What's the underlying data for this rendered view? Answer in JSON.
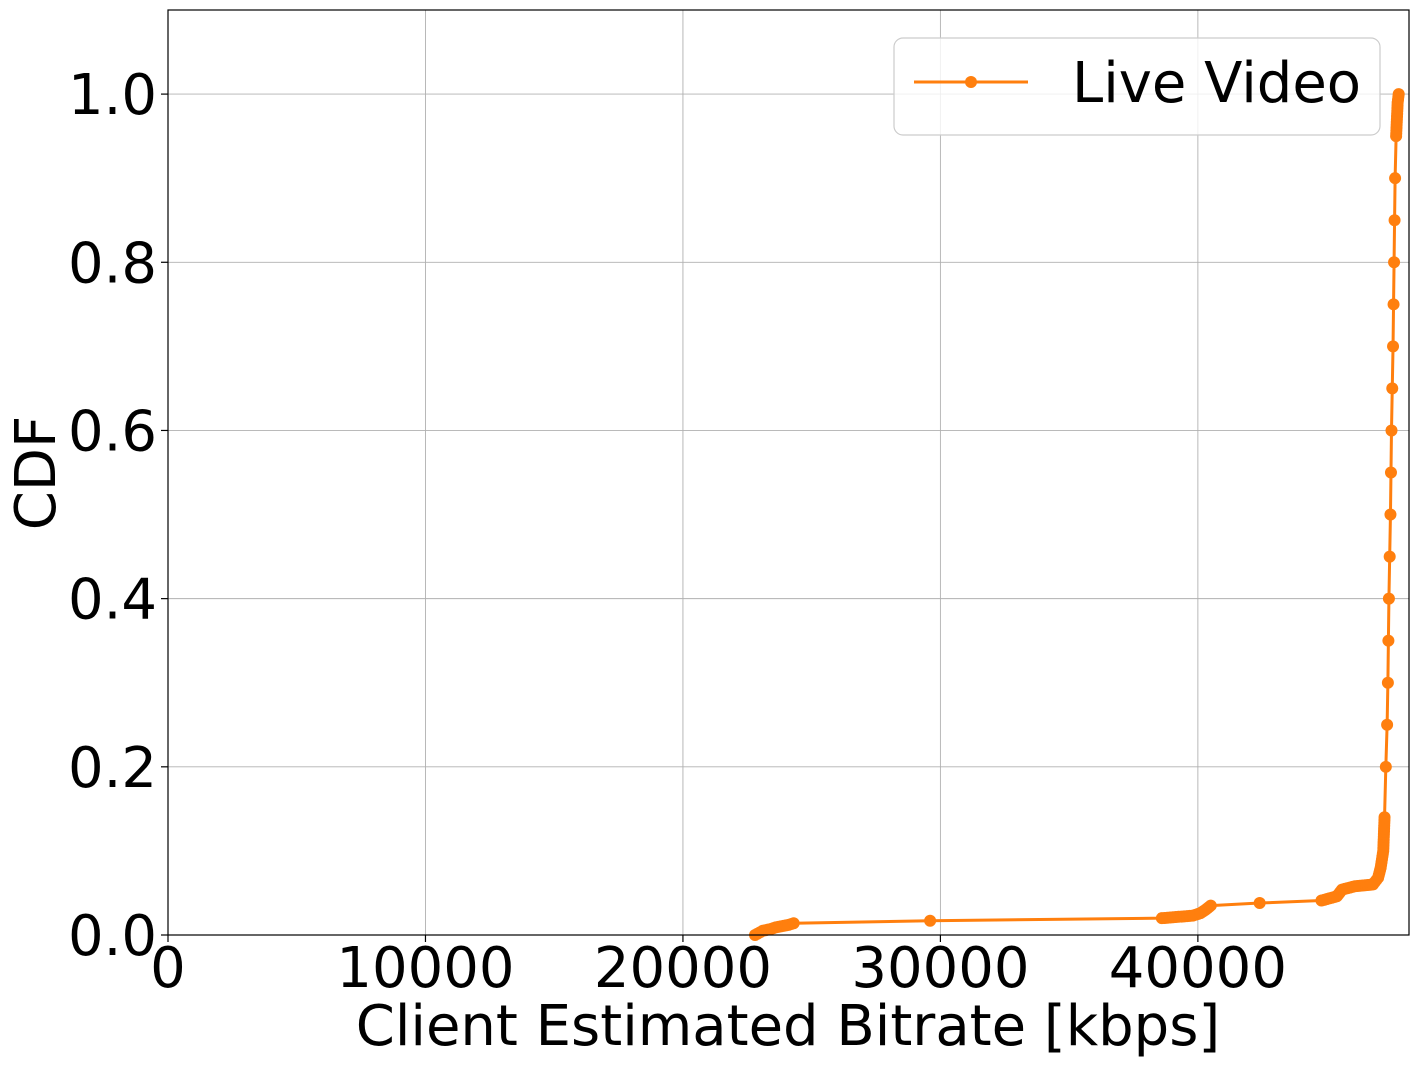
{
  "chart_data": {
    "type": "line",
    "title": "",
    "xlabel": "Client Estimated Bitrate [kbps]",
    "ylabel": "CDF",
    "xlim": [
      0,
      48200
    ],
    "ylim": [
      0,
      1.1
    ],
    "xticks": [
      0,
      10000,
      20000,
      30000,
      40000
    ],
    "xtick_labels": [
      "0",
      "10000",
      "20000",
      "30000",
      "40000"
    ],
    "yticks": [
      0.0,
      0.2,
      0.4,
      0.6,
      0.8,
      1.0
    ],
    "ytick_labels": [
      "0.0",
      "0.2",
      "0.4",
      "0.6",
      "0.8",
      "1.0"
    ],
    "grid": true,
    "legend_position": "top-right",
    "series": [
      {
        "name": "Live Video",
        "color": "#ff7f0e",
        "marker": "circle",
        "x": [
          22800,
          23100,
          23400,
          23600,
          24100,
          24300,
          29600,
          38600,
          39800,
          40100,
          40300,
          40500,
          42400,
          44800,
          45400,
          45500,
          45600,
          46100,
          46800,
          47000,
          47100,
          47200,
          47250,
          47300,
          47350,
          47380,
          47400,
          47420,
          47450,
          47480,
          47500,
          47520,
          47550,
          47580,
          47600,
          47620,
          47640,
          47660,
          47700,
          47760,
          47800
        ],
        "y": [
          0.0,
          0.005,
          0.007,
          0.009,
          0.012,
          0.014,
          0.017,
          0.02,
          0.023,
          0.026,
          0.03,
          0.035,
          0.038,
          0.041,
          0.046,
          0.05,
          0.054,
          0.058,
          0.06,
          0.068,
          0.08,
          0.1,
          0.14,
          0.2,
          0.25,
          0.3,
          0.35,
          0.4,
          0.45,
          0.5,
          0.55,
          0.6,
          0.65,
          0.7,
          0.75,
          0.8,
          0.85,
          0.9,
          0.95,
          0.99,
          1.0
        ]
      }
    ]
  }
}
